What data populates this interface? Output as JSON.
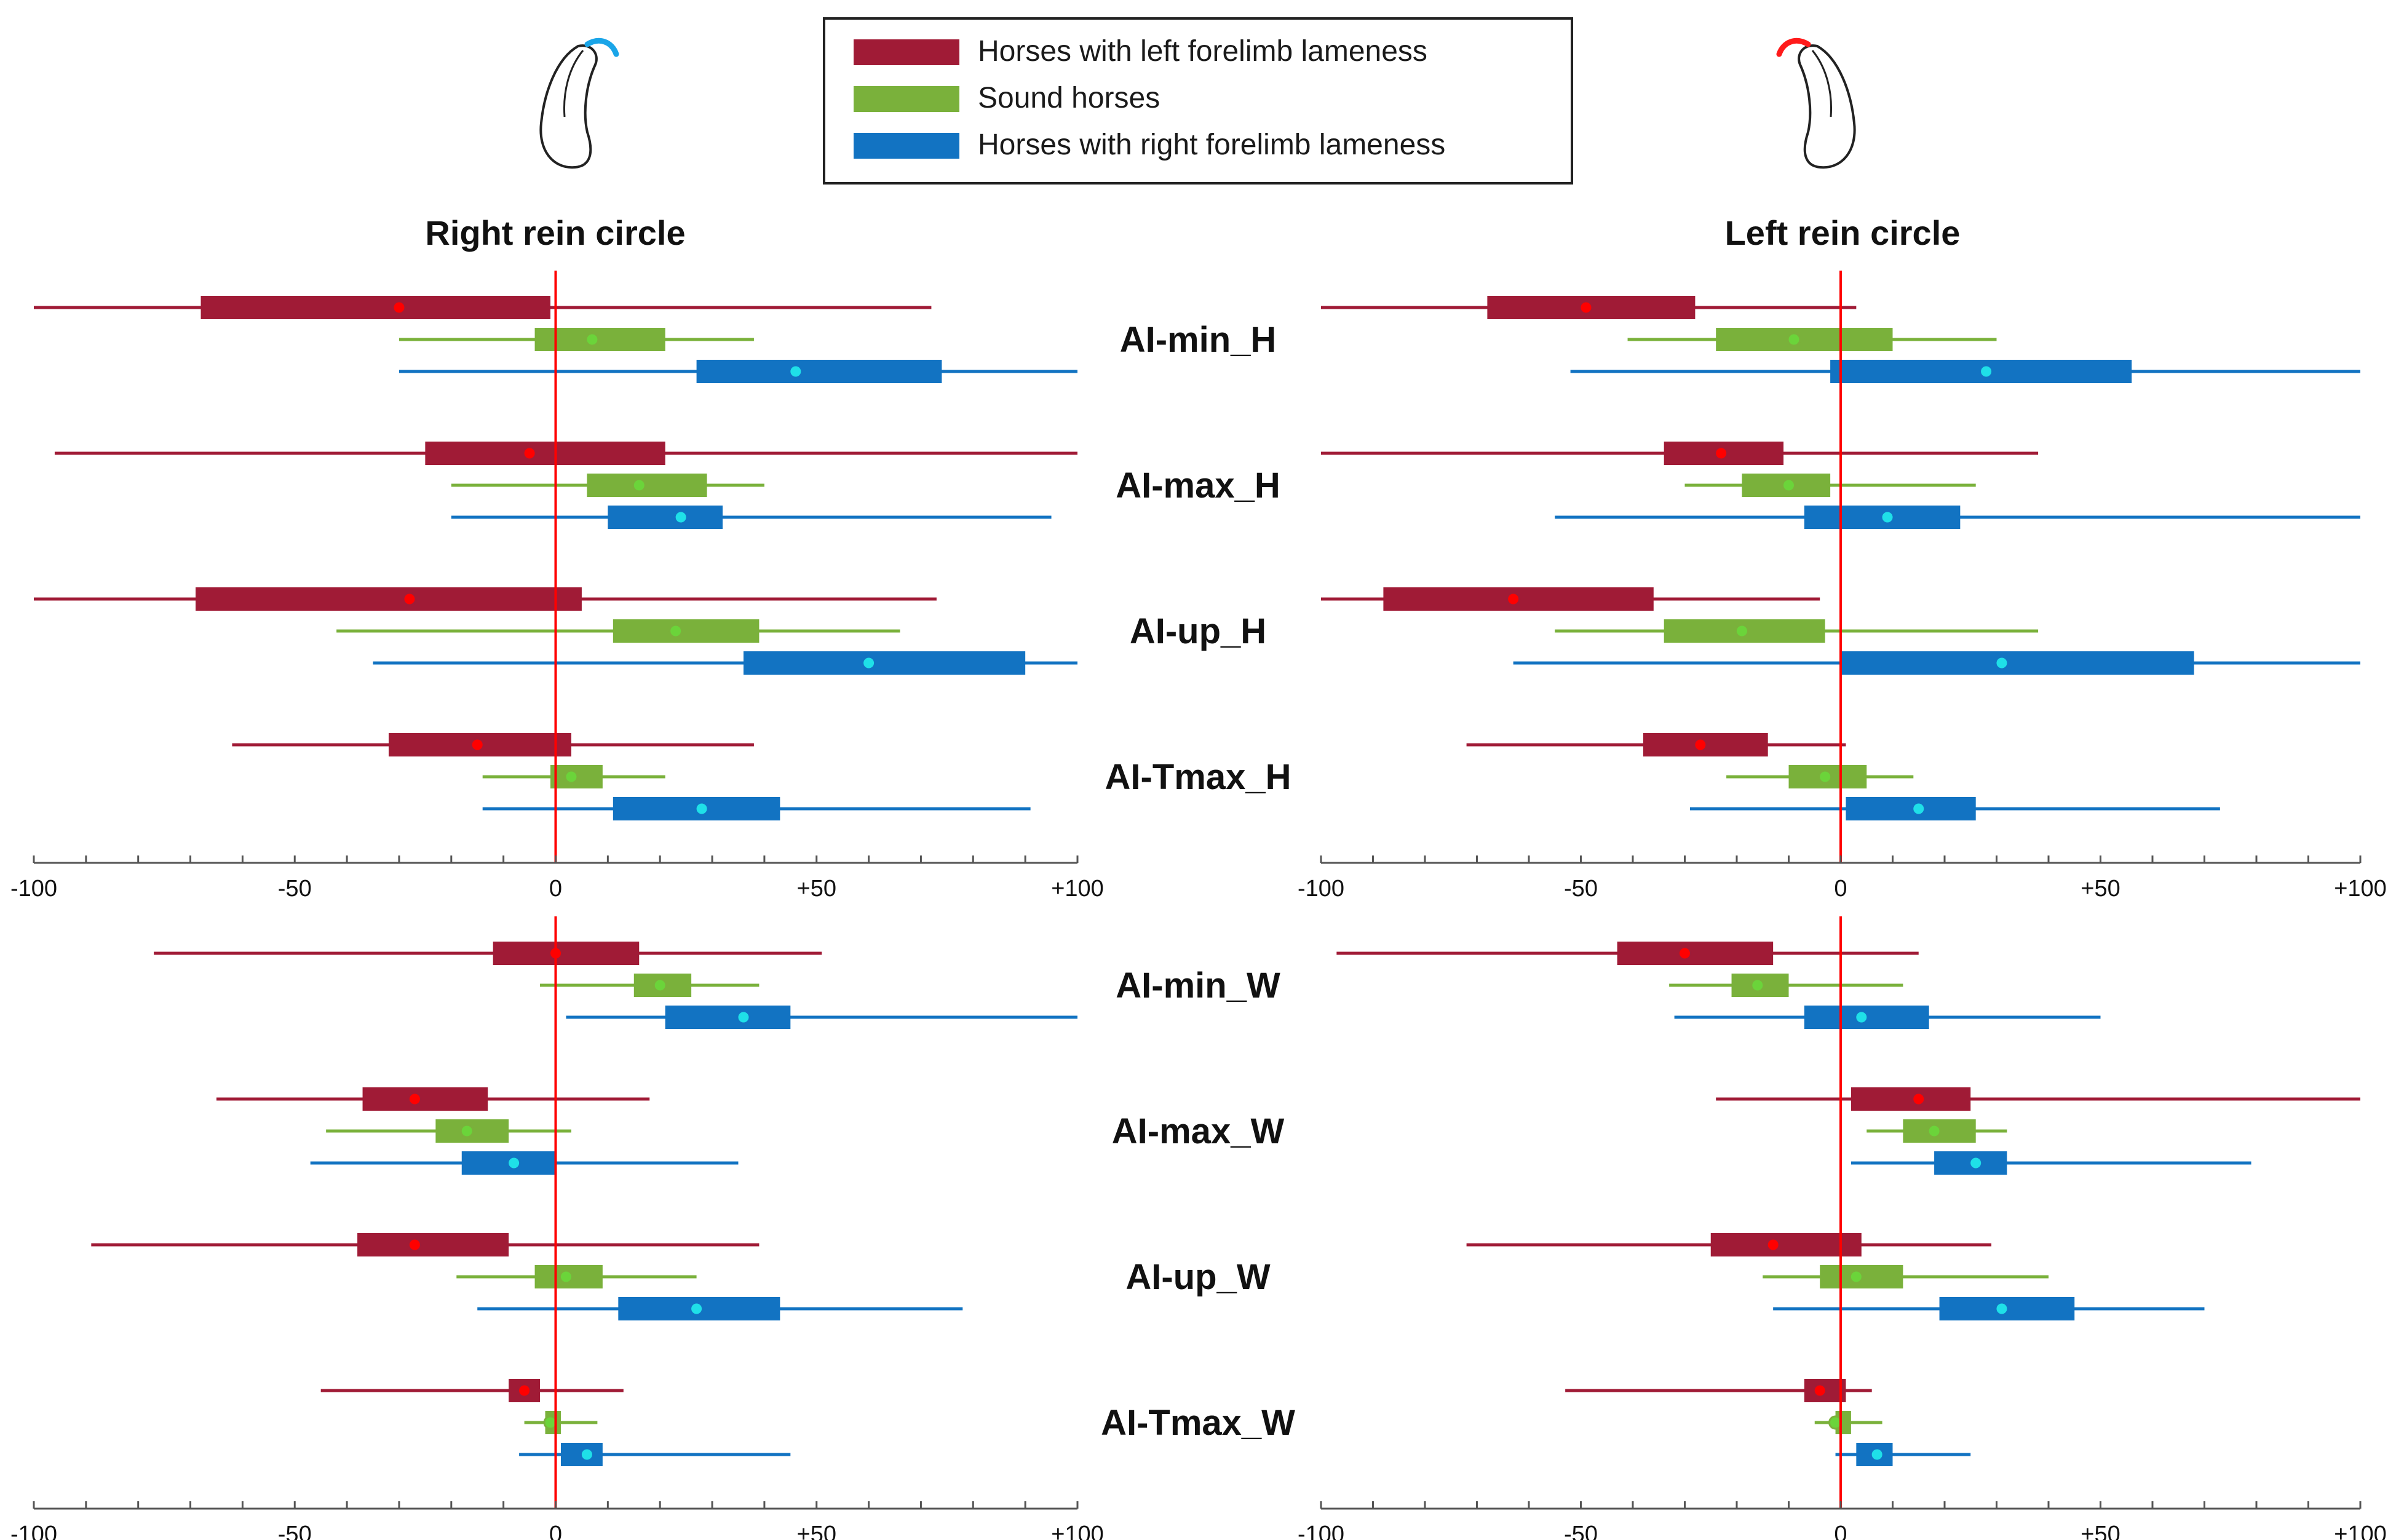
{
  "chart_data": {
    "type": "boxplot",
    "legend": {
      "placement": "top-center",
      "entries": [
        {
          "key": "left",
          "label": "Horses with left forelimb lameness",
          "color": "#A01B36"
        },
        {
          "key": "sound",
          "label": "Sound horses",
          "color": "#7AB13B"
        },
        {
          "key": "right",
          "label": "Horses with right forelimb lameness",
          "color": "#1273C2"
        }
      ]
    },
    "dot_colors": {
      "left": "#FF0000",
      "sound": "#6BD43A",
      "right": "#1FE0E8"
    },
    "reference_line_color": "#FF0000",
    "panels": [
      {
        "key": "right_rein",
        "title": "Right rein circle",
        "xlim": [
          -100,
          100
        ],
        "hoof_arc_color": "#1AA5E8"
      },
      {
        "key": "left_rein",
        "title": "Left rein circle",
        "xlim": [
          -100,
          100
        ],
        "hoof_arc_color": "#FF1A1A"
      }
    ],
    "x_ticks": [
      {
        "value": -100,
        "label": "-100"
      },
      {
        "value": -50,
        "label": "-50"
      },
      {
        "value": 0,
        "label": "0"
      },
      {
        "value": 50,
        "label": "+50"
      },
      {
        "value": 100,
        "label": "+100"
      }
    ],
    "minor_tick_step": 10,
    "groups": [
      {
        "title": "",
        "metrics": [
          {
            "label": "AI-min_H",
            "series": {
              "right_rein": {
                "left": {
                  "min": -100,
                  "q1": -68,
                  "median": -30,
                  "q3": -1,
                  "max": 72
                },
                "sound": {
                  "min": -30,
                  "q1": -4,
                  "median": 7,
                  "q3": 21,
                  "max": 38
                },
                "right": {
                  "min": -30,
                  "q1": 27,
                  "median": 46,
                  "q3": 74,
                  "max": 100
                }
              },
              "left_rein": {
                "left": {
                  "min": -100,
                  "q1": -68,
                  "median": -49,
                  "q3": -28,
                  "max": 3
                },
                "sound": {
                  "min": -41,
                  "q1": -24,
                  "median": -9,
                  "q3": 10,
                  "max": 30
                },
                "right": {
                  "min": -52,
                  "q1": -2,
                  "median": 28,
                  "q3": 56,
                  "max": 100
                }
              }
            }
          },
          {
            "label": "AI-max_H",
            "series": {
              "right_rein": {
                "left": {
                  "min": -96,
                  "q1": -25,
                  "median": -5,
                  "q3": 21,
                  "max": 100
                },
                "sound": {
                  "min": -20,
                  "q1": 6,
                  "median": 16,
                  "q3": 29,
                  "max": 40
                },
                "right": {
                  "min": -20,
                  "q1": 10,
                  "median": 24,
                  "q3": 32,
                  "max": 95
                }
              },
              "left_rein": {
                "left": {
                  "min": -100,
                  "q1": -34,
                  "median": -23,
                  "q3": -11,
                  "max": 38
                },
                "sound": {
                  "min": -30,
                  "q1": -19,
                  "median": -10,
                  "q3": -2,
                  "max": 26
                },
                "right": {
                  "min": -55,
                  "q1": -7,
                  "median": 9,
                  "q3": 23,
                  "max": 100
                }
              }
            }
          },
          {
            "label": "AI-up_H",
            "series": {
              "right_rein": {
                "left": {
                  "min": -100,
                  "q1": -69,
                  "median": -28,
                  "q3": 5,
                  "max": 73
                },
                "sound": {
                  "min": -42,
                  "q1": 11,
                  "median": 23,
                  "q3": 39,
                  "max": 66
                },
                "right": {
                  "min": -35,
                  "q1": 36,
                  "median": 60,
                  "q3": 90,
                  "max": 100
                }
              },
              "left_rein": {
                "left": {
                  "min": -100,
                  "q1": -88,
                  "median": -63,
                  "q3": -36,
                  "max": -4
                },
                "sound": {
                  "min": -55,
                  "q1": -34,
                  "median": -19,
                  "q3": -3,
                  "max": 38
                },
                "right": {
                  "min": -63,
                  "q1": 0,
                  "median": 31,
                  "q3": 68,
                  "max": 100
                }
              }
            }
          },
          {
            "label": "AI-Tmax_H",
            "series": {
              "right_rein": {
                "left": {
                  "min": -62,
                  "q1": -32,
                  "median": -15,
                  "q3": 3,
                  "max": 38
                },
                "sound": {
                  "min": -14,
                  "q1": -1,
                  "median": 3,
                  "q3": 9,
                  "max": 21
                },
                "right": {
                  "min": -14,
                  "q1": 11,
                  "median": 28,
                  "q3": 43,
                  "max": 91
                }
              },
              "left_rein": {
                "left": {
                  "min": -72,
                  "q1": -38,
                  "median": -27,
                  "q3": -14,
                  "max": 1
                },
                "sound": {
                  "min": -22,
                  "q1": -10,
                  "median": -3,
                  "q3": 5,
                  "max": 14
                },
                "right": {
                  "min": -29,
                  "q1": 1,
                  "median": 15,
                  "q3": 26,
                  "max": 73
                }
              }
            }
          }
        ]
      },
      {
        "title": "",
        "metrics": [
          {
            "label": "AI-min_W",
            "series": {
              "right_rein": {
                "left": {
                  "min": -77,
                  "q1": -12,
                  "median": 0,
                  "q3": 16,
                  "max": 51
                },
                "sound": {
                  "min": -3,
                  "q1": 15,
                  "median": 20,
                  "q3": 26,
                  "max": 39
                },
                "right": {
                  "min": 2,
                  "q1": 21,
                  "median": 36,
                  "q3": 45,
                  "max": 100
                }
              },
              "left_rein": {
                "left": {
                  "min": -97,
                  "q1": -43,
                  "median": -30,
                  "q3": -13,
                  "max": 15
                },
                "sound": {
                  "min": -33,
                  "q1": -21,
                  "median": -16,
                  "q3": -10,
                  "max": 12
                },
                "right": {
                  "min": -32,
                  "q1": -7,
                  "median": 4,
                  "q3": 17,
                  "max": 50
                }
              }
            }
          },
          {
            "label": "AI-max_W",
            "series": {
              "right_rein": {
                "left": {
                  "min": -65,
                  "q1": -37,
                  "median": -27,
                  "q3": -13,
                  "max": 18
                },
                "sound": {
                  "min": -44,
                  "q1": -23,
                  "median": -17,
                  "q3": -9,
                  "max": 3
                },
                "right": {
                  "min": -47,
                  "q1": -18,
                  "median": -8,
                  "q3": 0,
                  "max": 35
                }
              },
              "left_rein": {
                "left": {
                  "min": -24,
                  "q1": 2,
                  "median": 15,
                  "q3": 25,
                  "max": 100
                },
                "sound": {
                  "min": 5,
                  "q1": 12,
                  "median": 18,
                  "q3": 26,
                  "max": 32
                },
                "right": {
                  "min": 2,
                  "q1": 18,
                  "median": 26,
                  "q3": 32,
                  "max": 79
                }
              }
            }
          },
          {
            "label": "AI-up_W",
            "series": {
              "right_rein": {
                "left": {
                  "min": -89,
                  "q1": -38,
                  "median": -27,
                  "q3": -9,
                  "max": 39
                },
                "sound": {
                  "min": -19,
                  "q1": -4,
                  "median": 2,
                  "q3": 9,
                  "max": 27
                },
                "right": {
                  "min": -15,
                  "q1": 12,
                  "median": 27,
                  "q3": 43,
                  "max": 78
                }
              },
              "left_rein": {
                "left": {
                  "min": -72,
                  "q1": -25,
                  "median": -13,
                  "q3": 4,
                  "max": 29
                },
                "sound": {
                  "min": -15,
                  "q1": -4,
                  "median": 3,
                  "q3": 12,
                  "max": 40
                },
                "right": {
                  "min": -13,
                  "q1": 19,
                  "median": 31,
                  "q3": 45,
                  "max": 70
                }
              }
            }
          },
          {
            "label": "AI-Tmax_W",
            "series": {
              "right_rein": {
                "left": {
                  "min": -45,
                  "q1": -9,
                  "median": -6,
                  "q3": -3,
                  "max": 13
                },
                "sound": {
                  "min": -6,
                  "q1": -2,
                  "median": -1,
                  "q3": 1,
                  "max": 8
                },
                "right": {
                  "min": -7,
                  "q1": 1,
                  "median": 6,
                  "q3": 9,
                  "max": 45
                }
              },
              "left_rein": {
                "left": {
                  "min": -53,
                  "q1": -7,
                  "median": -4,
                  "q3": 1,
                  "max": 6
                },
                "sound": {
                  "min": -5,
                  "q1": -1,
                  "median": -1,
                  "q3": 2,
                  "max": 8
                },
                "right": {
                  "min": -1,
                  "q1": 3,
                  "median": 7,
                  "q3": 10,
                  "max": 25
                }
              }
            }
          }
        ]
      }
    ]
  }
}
